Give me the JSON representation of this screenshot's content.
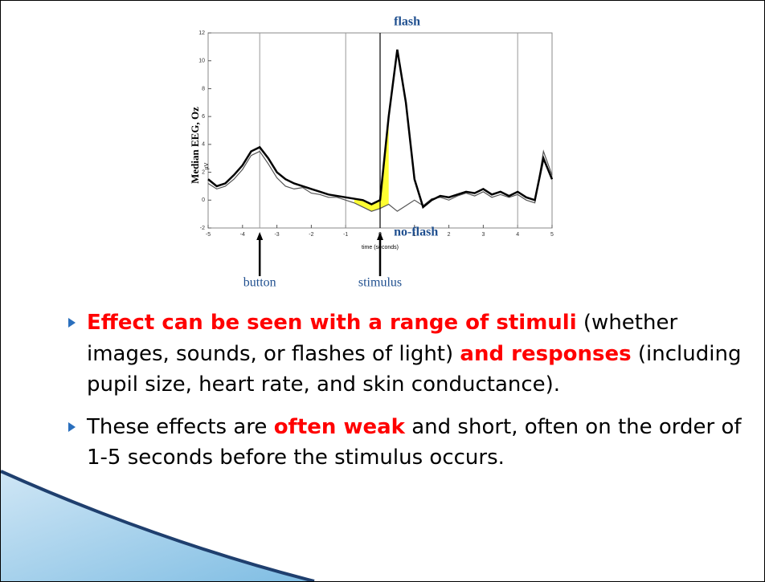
{
  "figure": {
    "type": "line",
    "ylabel": "Median EEG, Oz",
    "yunit": "µV",
    "xlabel": "time (seconds)",
    "x": [
      -5,
      -4.75,
      -4.5,
      -4.25,
      -4,
      -3.75,
      -3.5,
      -3.25,
      -3,
      -2.75,
      -2.5,
      -2.25,
      -2,
      -1.75,
      -1.5,
      -1.25,
      -1,
      -0.75,
      -0.5,
      -0.25,
      0,
      0.25,
      0.5,
      0.75,
      1,
      1.25,
      1.5,
      1.75,
      2,
      2.25,
      2.5,
      2.75,
      3,
      3.25,
      3.5,
      3.75,
      4,
      4.25,
      4.5,
      4.75,
      5
    ],
    "series": [
      {
        "name": "flash",
        "color": "#000000",
        "values": [
          1.5,
          1.0,
          1.2,
          1.8,
          2.5,
          3.5,
          3.8,
          3.0,
          2.0,
          1.5,
          1.2,
          1.0,
          0.8,
          0.6,
          0.4,
          0.3,
          0.2,
          0.1,
          0.0,
          -0.3,
          0.0,
          6.0,
          10.8,
          7.0,
          1.5,
          -0.5,
          0.0,
          0.3,
          0.2,
          0.4,
          0.6,
          0.5,
          0.8,
          0.4,
          0.6,
          0.3,
          0.6,
          0.2,
          0.0,
          3.0,
          1.5
        ]
      },
      {
        "name": "no-flash",
        "color": "#555555",
        "values": [
          1.2,
          0.8,
          1.0,
          1.5,
          2.2,
          3.2,
          3.5,
          2.6,
          1.6,
          1.0,
          0.8,
          0.9,
          0.5,
          0.4,
          0.2,
          0.2,
          0.0,
          -0.2,
          -0.5,
          -0.8,
          -0.6,
          -0.3,
          -0.8,
          -0.4,
          0.0,
          -0.4,
          0.1,
          0.2,
          0.0,
          0.3,
          0.5,
          0.3,
          0.6,
          0.2,
          0.4,
          0.2,
          0.4,
          0.0,
          -0.2,
          3.5,
          1.8
        ]
      }
    ],
    "xlim": [
      -5,
      5
    ],
    "ylim": [
      -2,
      12
    ],
    "xticks": [
      -5,
      -4,
      -3,
      -2,
      -1,
      0,
      1,
      2,
      3,
      4,
      5
    ],
    "yticks": [
      -2,
      0,
      2,
      4,
      6,
      8,
      10,
      12
    ],
    "vlines": [
      -3.5,
      -1,
      4
    ],
    "shade": {
      "from": -0.75,
      "to": 0.25,
      "color": "#ffff33"
    },
    "markers": [
      {
        "label": "button",
        "x": -3.5
      },
      {
        "label": "stimulus",
        "x": 0
      }
    ]
  },
  "bullets": [
    {
      "segments": [
        {
          "text": "Effect can be seen with a range of stimuli",
          "emphasis": true
        },
        {
          "text": " (whether images, sounds, or flashes of light) ",
          "emphasis": false
        },
        {
          "text": "and responses",
          "emphasis": true
        },
        {
          "text": " (including pupil size, heart rate, and skin conductance).",
          "emphasis": false
        }
      ]
    },
    {
      "segments": [
        {
          "text": "These effects are ",
          "emphasis": false
        },
        {
          "text": "often weak",
          "emphasis": true
        },
        {
          "text": " and short, often on the order of 1-5 seconds before the stimulus occurs.",
          "emphasis": false
        }
      ]
    }
  ]
}
